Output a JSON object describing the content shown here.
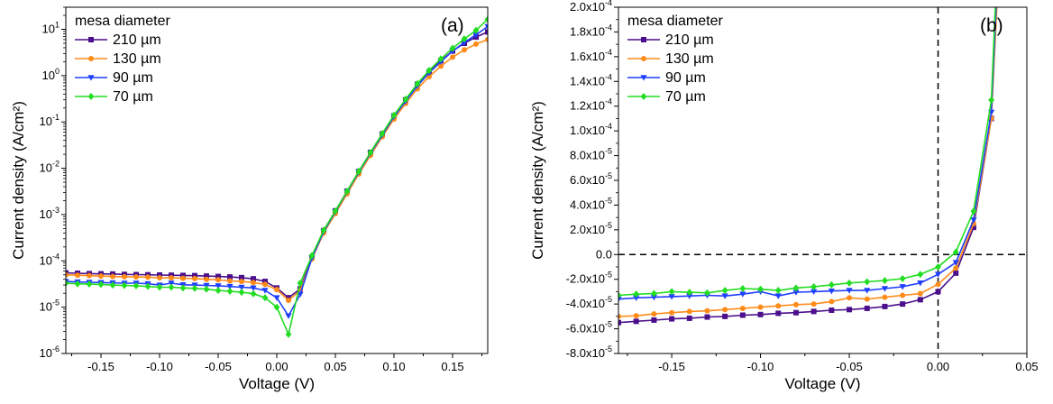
{
  "chart_data": [
    {
      "type": "line",
      "panel_label": "(a)",
      "xlabel": "Voltage (V)",
      "ylabel": "Current density (A/cm²)",
      "xlim": [
        -0.18,
        0.18
      ],
      "ylim": [
        1e-06,
        30
      ],
      "yscale": "log",
      "x_ticks": [
        -0.15,
        -0.1,
        -0.05,
        0.0,
        0.05,
        0.1,
        0.15
      ],
      "x_tick_labels": [
        "-0.15",
        "-0.10",
        "-0.05",
        "0.00",
        "0.05",
        "0.10",
        "0.15"
      ],
      "y_ticks": [
        1e-06,
        1e-05,
        0.0001,
        0.001,
        0.01,
        0.1,
        1,
        10
      ],
      "y_tick_labels": [
        {
          "base": "10",
          "exp": "-6"
        },
        {
          "base": "10",
          "exp": "-5"
        },
        {
          "base": "10",
          "exp": "-4"
        },
        {
          "base": "10",
          "exp": "-3"
        },
        {
          "base": "10",
          "exp": "-2"
        },
        {
          "base": "10",
          "exp": "-1"
        },
        {
          "base": "10",
          "exp": "0"
        },
        {
          "base": "10",
          "exp": "1"
        }
      ],
      "legend": {
        "title": "mesa diameter",
        "placement": "top-left"
      },
      "x": [
        -0.18,
        -0.17,
        -0.16,
        -0.15,
        -0.14,
        -0.13,
        -0.12,
        -0.11,
        -0.1,
        -0.09,
        -0.08,
        -0.07,
        -0.06,
        -0.05,
        -0.04,
        -0.03,
        -0.02,
        -0.01,
        0.0,
        0.01,
        0.02,
        0.03,
        0.04,
        0.05,
        0.06,
        0.07,
        0.08,
        0.09,
        0.1,
        0.11,
        0.12,
        0.13,
        0.14,
        0.15,
        0.16,
        0.17,
        0.18
      ],
      "series": [
        {
          "name": "210 µm",
          "color": "#4b0f8c",
          "marker": "square",
          "values": [
            5.5e-05,
            5.4e-05,
            5.3e-05,
            5.25e-05,
            5.2e-05,
            5.1e-05,
            5.05e-05,
            5e-05,
            4.95e-05,
            4.9e-05,
            4.85e-05,
            4.8e-05,
            4.7e-05,
            4.6e-05,
            4.5e-05,
            4.35e-05,
            4.1e-05,
            3.6e-05,
            2.6e-05,
            1.6e-05,
            2.5e-05,
            0.00012,
            0.00045,
            0.0012,
            0.0032,
            0.0085,
            0.022,
            0.055,
            0.135,
            0.3,
            0.65,
            1.2,
            2.1,
            3.4,
            5.0,
            6.8,
            8.8
          ]
        },
        {
          "name": "130 µm",
          "color": "#ff8c1a",
          "marker": "circle",
          "values": [
            5e-05,
            4.9e-05,
            4.8e-05,
            4.7e-05,
            4.6e-05,
            4.55e-05,
            4.5e-05,
            4.45e-05,
            4.3e-05,
            4.3e-05,
            4.2e-05,
            4.15e-05,
            4e-05,
            3.9e-05,
            3.7e-05,
            3.6e-05,
            3.4e-05,
            3.1e-05,
            2.4e-05,
            1.4e-05,
            2.3e-05,
            0.00011,
            0.0004,
            0.00105,
            0.0028,
            0.0075,
            0.019,
            0.048,
            0.115,
            0.25,
            0.52,
            0.95,
            1.6,
            2.5,
            3.6,
            4.8,
            6.0
          ]
        },
        {
          "name": "90 µm",
          "color": "#1f3fff",
          "marker": "triangle-down",
          "values": [
            3.6e-05,
            3.5e-05,
            3.45e-05,
            3.4e-05,
            3.35e-05,
            3.3e-05,
            3.3e-05,
            3.2e-05,
            3e-05,
            3.3e-05,
            3.05e-05,
            3e-05,
            2.95e-05,
            2.9e-05,
            2.8e-05,
            2.7e-05,
            2.6e-05,
            2.3e-05,
            1.6e-05,
            6.5e-06,
            1.9e-05,
            0.000115,
            0.00043,
            0.00115,
            0.0031,
            0.0082,
            0.021,
            0.052,
            0.13,
            0.28,
            0.6,
            1.15,
            2.0,
            3.4,
            5.2,
            7.6,
            11.5
          ]
        },
        {
          "name": "70 µm",
          "color": "#22dd22",
          "marker": "diamond",
          "values": [
            3.3e-05,
            3.2e-05,
            3.15e-05,
            3.1e-05,
            3e-05,
            2.95e-05,
            2.9e-05,
            2.8e-05,
            2.7e-05,
            2.7e-05,
            2.6e-05,
            2.55e-05,
            2.45e-05,
            2.3e-05,
            2.2e-05,
            2.1e-05,
            1.95e-05,
            1.6e-05,
            1e-05,
            2.6e-06,
            3.3e-05,
            0.00013,
            0.00046,
            0.0012,
            0.0032,
            0.0086,
            0.022,
            0.056,
            0.14,
            0.31,
            0.67,
            1.3,
            2.3,
            3.9,
            6.2,
            9.5,
            16.5
          ]
        }
      ]
    },
    {
      "type": "line",
      "panel_label": "(b)",
      "xlabel": "Voltage (V)",
      "ylabel": "Current density (A/cm²)",
      "xlim": [
        -0.18,
        0.05
      ],
      "ylim": [
        -8e-05,
        0.0002
      ],
      "yscale": "linear",
      "x_ticks": [
        -0.15,
        -0.1,
        -0.05,
        0.0,
        0.05
      ],
      "x_tick_labels": [
        "-0.15",
        "-0.10",
        "-0.05",
        "0.00",
        "0.05"
      ],
      "y_ticks": [
        -8e-05,
        -6e-05,
        -4e-05,
        -2e-05,
        0,
        2e-05,
        4e-05,
        6e-05,
        8e-05,
        0.0001,
        0.00012,
        0.00014,
        0.00016,
        0.00018,
        0.0002
      ],
      "y_tick_labels": [
        {
          "base": "-8.0x10",
          "exp": "-5"
        },
        {
          "base": "-6.0x10",
          "exp": "-5"
        },
        {
          "base": "-4.0x10",
          "exp": "-5"
        },
        {
          "base": "-2.0x10",
          "exp": "-5"
        },
        {
          "base": "0.0",
          "exp": ""
        },
        {
          "base": "2.0x10",
          "exp": "-5"
        },
        {
          "base": "4.0x10",
          "exp": "-5"
        },
        {
          "base": "6.0x10",
          "exp": "-5"
        },
        {
          "base": "8.0x10",
          "exp": "-5"
        },
        {
          "base": "1.0x10",
          "exp": "-4"
        },
        {
          "base": "1.2x10",
          "exp": "-4"
        },
        {
          "base": "1.4x10",
          "exp": "-4"
        },
        {
          "base": "1.6x10",
          "exp": "-4"
        },
        {
          "base": "1.8x10",
          "exp": "-4"
        },
        {
          "base": "2.0x10",
          "exp": "-4"
        }
      ],
      "reference_lines": {
        "x": 0,
        "y": 0,
        "style": "dashed"
      },
      "legend": {
        "title": "mesa diameter",
        "placement": "top-left"
      },
      "x": [
        -0.18,
        -0.17,
        -0.16,
        -0.15,
        -0.14,
        -0.13,
        -0.12,
        -0.11,
        -0.1,
        -0.09,
        -0.08,
        -0.07,
        -0.06,
        -0.05,
        -0.04,
        -0.03,
        -0.02,
        -0.01,
        0.0,
        0.01,
        0.02,
        0.03,
        0.04
      ],
      "series": [
        {
          "name": "210 µm",
          "color": "#4b0f8c",
          "marker": "square",
          "values": [
            -5.5e-05,
            -5.4e-05,
            -5.3e-05,
            -5.2e-05,
            -5.15e-05,
            -5.05e-05,
            -5e-05,
            -4.9e-05,
            -4.85e-05,
            -4.75e-05,
            -4.7e-05,
            -4.6e-05,
            -4.5e-05,
            -4.45e-05,
            -4.35e-05,
            -4.2e-05,
            -4e-05,
            -3.65e-05,
            -3e-05,
            -1.5e-05,
            2.2e-05,
            0.00011,
            0.00045
          ]
        },
        {
          "name": "130 µm",
          "color": "#ff8c1a",
          "marker": "circle",
          "values": [
            -5e-05,
            -4.95e-05,
            -4.8e-05,
            -4.7e-05,
            -4.6e-05,
            -4.55e-05,
            -4.45e-05,
            -4.35e-05,
            -4.25e-05,
            -4.15e-05,
            -4.05e-05,
            -4e-05,
            -3.8e-05,
            -3.5e-05,
            -3.6e-05,
            -3.45e-05,
            -3.3e-05,
            -3.15e-05,
            -2.4e-05,
            -1.1e-05,
            2.5e-05,
            0.00011,
            0.0004
          ]
        },
        {
          "name": "90 µm",
          "color": "#1f3fff",
          "marker": "triangle-down",
          "values": [
            -3.6e-05,
            -3.5e-05,
            -3.45e-05,
            -3.4e-05,
            -3.35e-05,
            -3.3e-05,
            -3.35e-05,
            -3.2e-05,
            -3e-05,
            -3.35e-05,
            -3.05e-05,
            -3e-05,
            -2.95e-05,
            -2.9e-05,
            -2.9e-05,
            -2.75e-05,
            -2.6e-05,
            -2.3e-05,
            -1.6e-05,
            -6.5e-06,
            2.8e-05,
            0.000115,
            0.00043
          ]
        },
        {
          "name": "70 µm",
          "color": "#22dd22",
          "marker": "diamond",
          "values": [
            -3.3e-05,
            -3.2e-05,
            -3.15e-05,
            -3e-05,
            -3.05e-05,
            -3.1e-05,
            -2.9e-05,
            -2.75e-05,
            -2.8e-05,
            -2.9e-05,
            -2.7e-05,
            -2.6e-05,
            -2.45e-05,
            -2.3e-05,
            -2.2e-05,
            -2.1e-05,
            -1.95e-05,
            -1.6e-05,
            -1e-05,
            2e-06,
            3.5e-05,
            0.000125,
            0.00046
          ]
        }
      ]
    }
  ]
}
